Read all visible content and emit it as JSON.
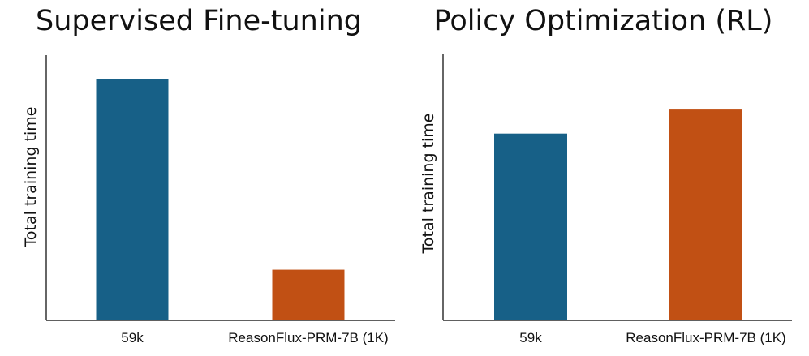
{
  "colors": {
    "series_a": "#176087",
    "series_b": "#C15014"
  },
  "chart_data": [
    {
      "type": "bar",
      "title": "Supervised Fine-tuning",
      "xlabel": "",
      "ylabel": "Total training time",
      "categories": [
        "59k",
        "ReasonFlux-PRM-7B (1K)"
      ],
      "values": [
        1.0,
        0.21
      ],
      "ylim": [
        0,
        1.1
      ],
      "grid": false,
      "legend": "none"
    },
    {
      "type": "bar",
      "title": "Policy Optimization (RL)",
      "xlabel": "",
      "ylabel": "Total training time",
      "categories": [
        "59k",
        "ReasonFlux-PRM-7B (1K)"
      ],
      "values": [
        0.7,
        0.79
      ],
      "ylim": [
        0,
        1.0
      ],
      "grid": false,
      "legend": "none"
    }
  ]
}
